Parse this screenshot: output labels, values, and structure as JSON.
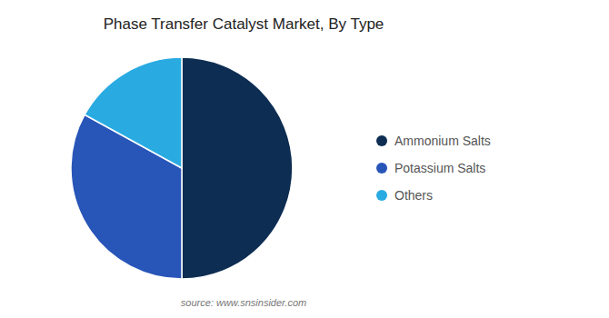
{
  "chart_data": {
    "type": "pie",
    "title": "Phase Transfer Catalyst Market, By Type",
    "categories": [
      "Ammonium Salts",
      "Potassium Salts",
      "Others"
    ],
    "values": [
      50,
      33,
      17
    ],
    "colors": [
      "#0d2d52",
      "#2855b8",
      "#29abe2"
    ],
    "legend": "right",
    "annotations": [
      "source: www.snsinsider.com"
    ]
  }
}
